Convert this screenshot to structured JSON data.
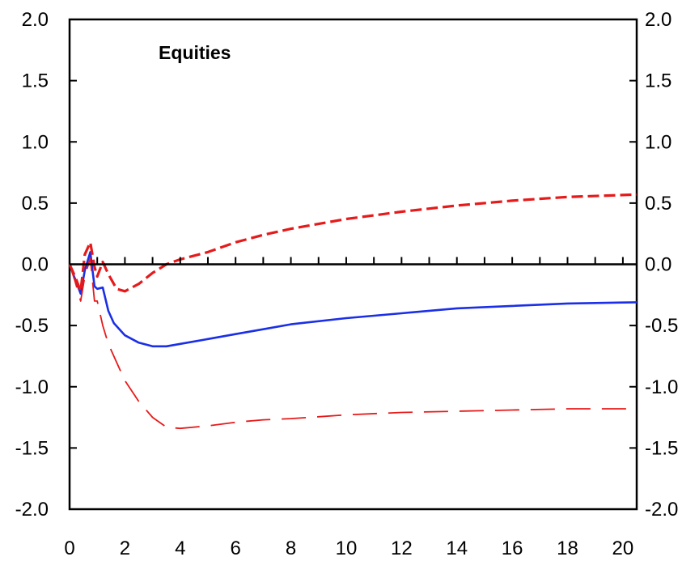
{
  "chart_data": {
    "type": "line",
    "title": "Equities",
    "xlabel": "",
    "ylabel": "",
    "xlim": [
      0,
      20.5
    ],
    "ylim": [
      -2.0,
      2.0
    ],
    "x_ticks": [
      "0",
      "2",
      "4",
      "6",
      "8",
      "10",
      "12",
      "14",
      "16",
      "18",
      "20"
    ],
    "x_tick_values": [
      0,
      2,
      4,
      6,
      8,
      10,
      12,
      14,
      16,
      18,
      20
    ],
    "y_ticks_left": [
      "2.0",
      "1.5",
      "1.0",
      "0.5",
      "0.0",
      "-0.5",
      "-1.0",
      "-1.5",
      "-2.0"
    ],
    "y_ticks_right": [
      "2.0",
      "1.5",
      "1.0",
      "0.5",
      "0.0",
      "-0.5",
      "-1.0",
      "-1.5",
      "-2.0"
    ],
    "y_tick_values": [
      2.0,
      1.5,
      1.0,
      0.5,
      0.0,
      -0.5,
      -1.0,
      -1.5,
      -2.0
    ],
    "grid": false,
    "zero_line": true,
    "series": [
      {
        "style": "solid",
        "color": "#1a2fe6",
        "x": [
          0,
          0.2,
          0.4,
          0.55,
          0.75,
          0.9,
          1.0,
          1.2,
          1.4,
          1.6,
          2.0,
          2.5,
          3.0,
          3.5,
          4.0,
          5.0,
          6.0,
          7.0,
          8.0,
          10.0,
          12.0,
          14.0,
          16.0,
          18.0,
          20.5
        ],
        "y": [
          0.0,
          -0.12,
          -0.24,
          -0.05,
          0.1,
          -0.18,
          -0.2,
          -0.19,
          -0.38,
          -0.48,
          -0.58,
          -0.64,
          -0.67,
          -0.67,
          -0.65,
          -0.61,
          -0.57,
          -0.53,
          -0.49,
          -0.44,
          -0.4,
          -0.36,
          -0.34,
          -0.32,
          -0.31
        ]
      },
      {
        "style": "dashed",
        "color": "#e61a1a",
        "x": [
          0,
          0.2,
          0.4,
          0.55,
          0.75,
          0.9,
          1.0,
          1.2,
          1.4,
          1.7,
          2.0,
          2.5,
          3.0,
          3.5,
          4.0,
          5.0,
          6.0,
          7.0,
          8.0,
          10.0,
          12.0,
          14.0,
          16.0,
          18.0,
          20.5
        ],
        "y": [
          0.0,
          -0.1,
          -0.22,
          0.08,
          0.18,
          -0.02,
          -0.1,
          0.02,
          -0.08,
          -0.2,
          -0.22,
          -0.16,
          -0.07,
          0.0,
          0.04,
          0.1,
          0.18,
          0.24,
          0.29,
          0.37,
          0.43,
          0.48,
          0.52,
          0.55,
          0.57
        ]
      },
      {
        "style": "long-dashed",
        "color": "#e61a1a",
        "x": [
          0,
          0.2,
          0.4,
          0.55,
          0.75,
          0.9,
          1.0,
          1.2,
          1.4,
          1.7,
          2.0,
          2.5,
          3.0,
          3.5,
          4.0,
          5.0,
          6.0,
          7.0,
          8.0,
          10.0,
          12.0,
          14.0,
          16.0,
          18.0,
          20.5
        ],
        "y": [
          0.0,
          -0.14,
          -0.3,
          -0.1,
          0.05,
          -0.3,
          -0.3,
          -0.5,
          -0.65,
          -0.8,
          -0.95,
          -1.12,
          -1.25,
          -1.33,
          -1.34,
          -1.32,
          -1.29,
          -1.27,
          -1.26,
          -1.23,
          -1.21,
          -1.2,
          -1.19,
          -1.18,
          -1.18
        ]
      }
    ]
  }
}
